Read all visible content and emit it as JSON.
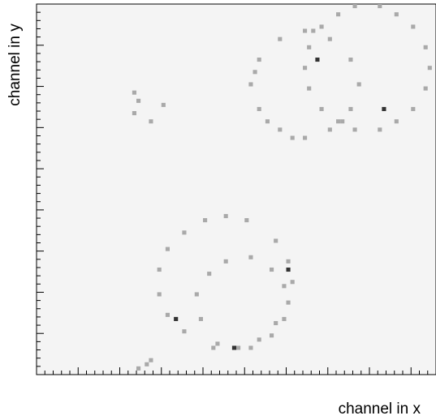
{
  "chart_data": {
    "type": "heatmap",
    "x_label": "channel in x",
    "y_label": "channel in y",
    "xlim": [
      0,
      96
    ],
    "ylim": [
      0,
      90
    ],
    "xticks": [
      0,
      2,
      4,
      6,
      8,
      10,
      12,
      14,
      16,
      18,
      20,
      22,
      24,
      26,
      28,
      30,
      32,
      34,
      36,
      38,
      40,
      42,
      44,
      46,
      48,
      50,
      52,
      54,
      56,
      58,
      60,
      62,
      64,
      66,
      68,
      70,
      72,
      74,
      76,
      78,
      80,
      82,
      84,
      86,
      88,
      90,
      92,
      94,
      96
    ],
    "yticks": [
      0,
      2,
      4,
      6,
      8,
      10,
      12,
      14,
      16,
      18,
      20,
      22,
      24,
      26,
      28,
      30,
      32,
      34,
      36,
      38,
      40,
      42,
      44,
      46,
      48,
      50,
      52,
      54,
      56,
      58,
      60,
      62,
      64,
      66,
      68,
      70,
      72,
      74,
      76,
      78,
      80,
      82,
      84,
      86,
      88,
      90
    ],
    "background": "#f4f4f4",
    "zcolors": {
      "1": "#a9a9a9",
      "3": "#333333"
    },
    "x": [
      77,
      75,
      70,
      64,
      58,
      53,
      51,
      53,
      58,
      64,
      70,
      75,
      66,
      52,
      55,
      61,
      73,
      94,
      93,
      90,
      86,
      82,
      76,
      72,
      68,
      65,
      64,
      65,
      68,
      72,
      76,
      82,
      86,
      90,
      93,
      57,
      50,
      45,
      40,
      35,
      31,
      29,
      29,
      31,
      35,
      42,
      48,
      53,
      57,
      60,
      61,
      60,
      59,
      56,
      51,
      45,
      41,
      38,
      39,
      43,
      51,
      56,
      59,
      23,
      24,
      23,
      27,
      30,
      26,
      27,
      24,
      67,
      83,
      60,
      33,
      47
    ],
    "y": [
      70,
      76,
      81,
      83,
      81,
      76,
      70,
      64,
      59,
      57,
      59,
      64,
      83,
      73,
      61,
      57,
      61,
      74,
      79,
      84,
      87,
      89,
      89,
      87,
      84,
      79,
      74,
      69,
      64,
      61,
      59,
      59,
      61,
      64,
      69,
      32,
      37,
      38,
      37,
      34,
      30,
      25,
      19,
      14,
      10,
      6,
      6,
      8,
      12,
      17,
      22,
      27,
      21,
      25,
      28,
      27,
      24,
      19,
      13,
      7,
      6,
      9,
      13,
      68,
      66,
      63,
      61,
      65,
      2,
      3,
      1,
      76,
      64,
      25,
      13,
      6
    ],
    "z": [
      1,
      1,
      1,
      1,
      1,
      1,
      1,
      1,
      1,
      1,
      1,
      1,
      1,
      1,
      1,
      1,
      1,
      1,
      1,
      1,
      1,
      1,
      1,
      1,
      1,
      1,
      1,
      1,
      1,
      1,
      1,
      1,
      1,
      1,
      1,
      1,
      1,
      1,
      1,
      1,
      1,
      1,
      1,
      1,
      1,
      1,
      1,
      1,
      1,
      1,
      1,
      1,
      1,
      1,
      1,
      1,
      1,
      1,
      1,
      1,
      1,
      1,
      1,
      1,
      1,
      1,
      1,
      1,
      1,
      1,
      1,
      3,
      3,
      3,
      3,
      3
    ]
  }
}
